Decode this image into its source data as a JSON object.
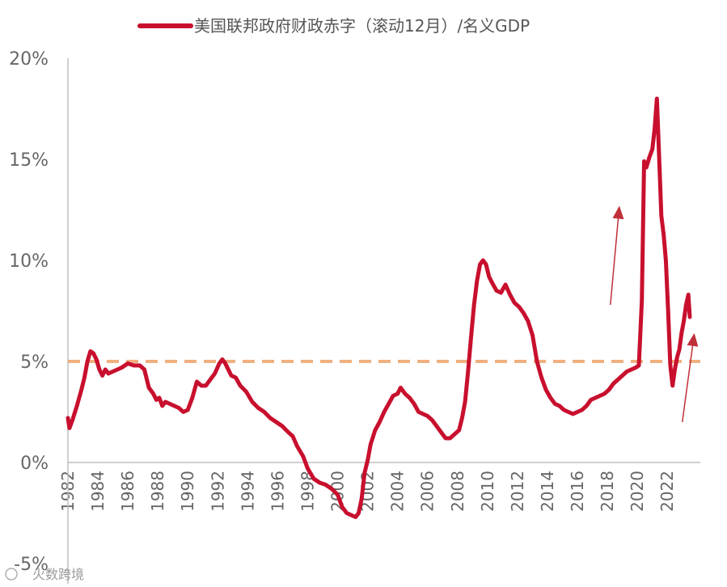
{
  "chart_data": {
    "type": "line",
    "legend": "美国联邦政府财政赤字（滚动12月）/名义GDP",
    "legend_position": "top-center",
    "ylim": [
      -5,
      20
    ],
    "yticks": [
      -5,
      0,
      5,
      10,
      15,
      20
    ],
    "ytick_labels": [
      "-5%",
      "0%",
      "5%",
      "10%",
      "15%",
      "20%"
    ],
    "xlim": [
      1982,
      2024.2
    ],
    "xticks": [
      "1982",
      "1984",
      "1986",
      "1988",
      "1990",
      "1992",
      "1994",
      "1996",
      "1998",
      "2000",
      "2002",
      "2004",
      "2006",
      "2008",
      "2010",
      "2012",
      "2014",
      "2016",
      "2018",
      "2020",
      "2022"
    ],
    "reference_line": {
      "y": 5,
      "style": "dashed",
      "color": "#f0b080"
    },
    "series": [
      {
        "name": "美国联邦政府财政赤字（滚动12月）/名义GDP",
        "color": "#c8102e",
        "points": [
          [
            1982.0,
            2.2
          ],
          [
            1982.1,
            1.7
          ],
          [
            1982.3,
            2.1
          ],
          [
            1982.6,
            2.8
          ],
          [
            1982.9,
            3.6
          ],
          [
            1983.1,
            4.2
          ],
          [
            1983.3,
            5.0
          ],
          [
            1983.5,
            5.5
          ],
          [
            1983.7,
            5.4
          ],
          [
            1983.9,
            5.1
          ],
          [
            1984.1,
            4.6
          ],
          [
            1984.3,
            4.3
          ],
          [
            1984.5,
            4.6
          ],
          [
            1984.7,
            4.4
          ],
          [
            1985.0,
            4.5
          ],
          [
            1985.3,
            4.6
          ],
          [
            1985.6,
            4.7
          ],
          [
            1986.0,
            4.9
          ],
          [
            1986.4,
            4.8
          ],
          [
            1986.8,
            4.8
          ],
          [
            1987.1,
            4.6
          ],
          [
            1987.4,
            3.7
          ],
          [
            1987.7,
            3.4
          ],
          [
            1987.9,
            3.1
          ],
          [
            1988.1,
            3.2
          ],
          [
            1988.3,
            2.8
          ],
          [
            1988.5,
            3.0
          ],
          [
            1988.8,
            2.9
          ],
          [
            1989.1,
            2.8
          ],
          [
            1989.4,
            2.7
          ],
          [
            1989.7,
            2.5
          ],
          [
            1990.0,
            2.6
          ],
          [
            1990.3,
            3.2
          ],
          [
            1990.6,
            4.0
          ],
          [
            1990.9,
            3.8
          ],
          [
            1991.2,
            3.8
          ],
          [
            1991.5,
            4.1
          ],
          [
            1991.8,
            4.4
          ],
          [
            1992.1,
            4.9
          ],
          [
            1992.3,
            5.1
          ],
          [
            1992.5,
            4.9
          ],
          [
            1992.7,
            4.6
          ],
          [
            1992.9,
            4.3
          ],
          [
            1993.2,
            4.2
          ],
          [
            1993.5,
            3.8
          ],
          [
            1993.9,
            3.5
          ],
          [
            1994.3,
            3.0
          ],
          [
            1994.7,
            2.7
          ],
          [
            1995.1,
            2.5
          ],
          [
            1995.5,
            2.2
          ],
          [
            1995.9,
            2.0
          ],
          [
            1996.3,
            1.8
          ],
          [
            1996.7,
            1.5
          ],
          [
            1997.0,
            1.3
          ],
          [
            1997.3,
            0.8
          ],
          [
            1997.7,
            0.3
          ],
          [
            1998.0,
            -0.3
          ],
          [
            1998.4,
            -0.8
          ],
          [
            1998.8,
            -1.0
          ],
          [
            1999.2,
            -1.1
          ],
          [
            1999.6,
            -1.3
          ],
          [
            2000.0,
            -1.6
          ],
          [
            2000.3,
            -2.2
          ],
          [
            2000.6,
            -2.5
          ],
          [
            2000.9,
            -2.6
          ],
          [
            2001.2,
            -2.7
          ],
          [
            2001.4,
            -2.5
          ],
          [
            2001.6,
            -1.8
          ],
          [
            2001.8,
            -0.5
          ],
          [
            2002.0,
            0.1
          ],
          [
            2002.2,
            0.9
          ],
          [
            2002.5,
            1.6
          ],
          [
            2002.8,
            2.0
          ],
          [
            2003.1,
            2.5
          ],
          [
            2003.4,
            2.9
          ],
          [
            2003.7,
            3.3
          ],
          [
            2004.0,
            3.4
          ],
          [
            2004.2,
            3.7
          ],
          [
            2004.5,
            3.4
          ],
          [
            2004.8,
            3.2
          ],
          [
            2005.1,
            2.9
          ],
          [
            2005.4,
            2.5
          ],
          [
            2005.7,
            2.4
          ],
          [
            2006.0,
            2.3
          ],
          [
            2006.3,
            2.1
          ],
          [
            2006.6,
            1.8
          ],
          [
            2006.9,
            1.5
          ],
          [
            2007.2,
            1.2
          ],
          [
            2007.5,
            1.2
          ],
          [
            2007.8,
            1.4
          ],
          [
            2008.1,
            1.6
          ],
          [
            2008.3,
            2.2
          ],
          [
            2008.5,
            3.0
          ],
          [
            2008.7,
            4.5
          ],
          [
            2008.9,
            6.2
          ],
          [
            2009.1,
            7.8
          ],
          [
            2009.3,
            9.0
          ],
          [
            2009.5,
            9.8
          ],
          [
            2009.7,
            10.0
          ],
          [
            2009.9,
            9.8
          ],
          [
            2010.1,
            9.2
          ],
          [
            2010.3,
            8.9
          ],
          [
            2010.6,
            8.5
          ],
          [
            2010.9,
            8.4
          ],
          [
            2011.2,
            8.8
          ],
          [
            2011.5,
            8.3
          ],
          [
            2011.8,
            7.9
          ],
          [
            2012.1,
            7.7
          ],
          [
            2012.4,
            7.4
          ],
          [
            2012.7,
            7.0
          ],
          [
            2013.0,
            6.3
          ],
          [
            2013.3,
            5.0
          ],
          [
            2013.6,
            4.2
          ],
          [
            2013.9,
            3.6
          ],
          [
            2014.2,
            3.2
          ],
          [
            2014.5,
            2.9
          ],
          [
            2014.8,
            2.8
          ],
          [
            2015.1,
            2.6
          ],
          [
            2015.4,
            2.5
          ],
          [
            2015.7,
            2.4
          ],
          [
            2016.0,
            2.5
          ],
          [
            2016.3,
            2.6
          ],
          [
            2016.6,
            2.8
          ],
          [
            2016.9,
            3.1
          ],
          [
            2017.2,
            3.2
          ],
          [
            2017.5,
            3.3
          ],
          [
            2017.8,
            3.4
          ],
          [
            2018.1,
            3.6
          ],
          [
            2018.4,
            3.9
          ],
          [
            2018.7,
            4.1
          ],
          [
            2019.0,
            4.3
          ],
          [
            2019.3,
            4.5
          ],
          [
            2019.6,
            4.6
          ],
          [
            2019.9,
            4.7
          ],
          [
            2020.1,
            4.8
          ],
          [
            2020.3,
            8.0
          ],
          [
            2020.45,
            14.9
          ],
          [
            2020.6,
            14.6
          ],
          [
            2020.8,
            15.1
          ],
          [
            2021.0,
            15.5
          ],
          [
            2021.15,
            16.5
          ],
          [
            2021.3,
            18.0
          ],
          [
            2021.45,
            15.2
          ],
          [
            2021.6,
            12.2
          ],
          [
            2021.75,
            11.3
          ],
          [
            2021.9,
            10.0
          ],
          [
            2022.05,
            7.5
          ],
          [
            2022.2,
            4.8
          ],
          [
            2022.35,
            3.8
          ],
          [
            2022.5,
            4.6
          ],
          [
            2022.65,
            5.2
          ],
          [
            2022.8,
            5.6
          ],
          [
            2022.95,
            6.4
          ],
          [
            2023.1,
            7.0
          ],
          [
            2023.25,
            7.8
          ],
          [
            2023.4,
            8.3
          ],
          [
            2023.5,
            7.2
          ]
        ]
      }
    ],
    "annotations": [
      {
        "type": "arrow",
        "from": [
          2018.2,
          7.8
        ],
        "to": [
          2018.8,
          12.7
        ],
        "color": "#c0303a"
      },
      {
        "type": "arrow",
        "from": [
          2023.0,
          2.0
        ],
        "to": [
          2023.8,
          6.4
        ],
        "color": "#c0303a"
      }
    ]
  },
  "watermark": "火数跨境"
}
